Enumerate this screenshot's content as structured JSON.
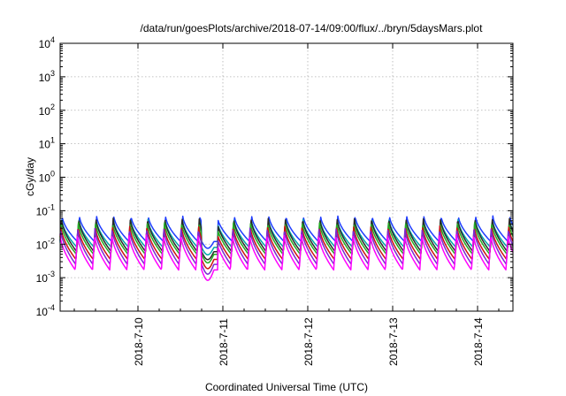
{
  "chart_data": {
    "type": "line",
    "title": "/data/run/goesPlots/archive/2018-07-14/09:00/flux/../bryn/5daysMars.plot",
    "xlabel": "Coordinated Universal Time (UTC)",
    "ylabel": "cGy/day",
    "yscale": "log",
    "ylim": [
      0.0001,
      10000
    ],
    "y_ticks": [
      {
        "base": "10",
        "exp": "-4",
        "value": 0.0001
      },
      {
        "base": "10",
        "exp": "-3",
        "value": 0.001
      },
      {
        "base": "10",
        "exp": "-2",
        "value": 0.01
      },
      {
        "base": "10",
        "exp": "-1",
        "value": 0.1
      },
      {
        "base": "10",
        "exp": "0",
        "value": 1
      },
      {
        "base": "10",
        "exp": "1",
        "value": 10
      },
      {
        "base": "10",
        "exp": "2",
        "value": 100
      },
      {
        "base": "10",
        "exp": "3",
        "value": 1000
      },
      {
        "base": "10",
        "exp": "4",
        "value": 10000
      }
    ],
    "xlim": [
      "2018-07-09 02:00",
      "2018-07-14 10:00"
    ],
    "x_ticks": [
      {
        "label": "2018-7-10",
        "value": "2018-07-10 00:00"
      },
      {
        "label": "2018-7-11",
        "value": "2018-07-11 00:00"
      },
      {
        "label": "2018-7-12",
        "value": "2018-07-12 00:00"
      },
      {
        "label": "2018-7-13",
        "value": "2018-07-13 00:00"
      },
      {
        "label": "2018-7-14",
        "value": "2018-07-14 00:00"
      }
    ],
    "grid": true,
    "legend": "none",
    "orbit_period_hours": 4.87,
    "series": [
      {
        "color": "#1e3cff",
        "peak": 0.07,
        "trough": 0.012
      },
      {
        "color": "#00a8a8",
        "peak": 0.055,
        "trough": 0.008
      },
      {
        "color": "#2a2a2a",
        "peak": 0.06,
        "trough": 0.006
      },
      {
        "color": "#22aa22",
        "peak": 0.045,
        "trough": 0.005
      },
      {
        "color": "#cc1111",
        "peak": 0.035,
        "trough": 0.0035
      },
      {
        "color": "#7a2ad0",
        "peak": 0.03,
        "trough": 0.0025
      },
      {
        "color": "#ff00ff",
        "peak": 0.02,
        "trough": 0.0017
      }
    ],
    "dip": {
      "start": "2018-07-10 18:00",
      "end": "2018-07-10 22:30",
      "trough_series6": 0.0009
    }
  }
}
